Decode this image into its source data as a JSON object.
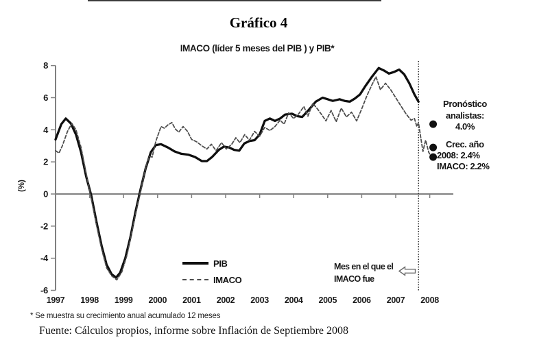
{
  "figure": {
    "title": "Gráfico 4",
    "subtitle": "IMACO (líder 5 meses del PIB ) y PIB*",
    "footnote": "* Se muestra su crecimiento anual acumulado 12 meses",
    "source": "Fuente: Cálculos propios, informe sobre Inflación de Septiembre 2008"
  },
  "legend": {
    "pib_label": "PIB",
    "imaco_label": "IMACO"
  },
  "annotations": {
    "forecast": {
      "line1": "Pronóstico",
      "line2": "analistas:",
      "line3": "4.0%"
    },
    "growth": {
      "line1": "Crec. año",
      "line2": "2008: 2.4%",
      "line3": "IMACO: 2.2%"
    },
    "divider_note": {
      "line1": "Mes en el que el",
      "line2": "IMACO fue",
      "arrow_icon": "left-hollow-arrow"
    }
  },
  "chart_data": {
    "type": "line",
    "title": "IMACO (líder 5 meses del PIB ) y PIB*",
    "xlabel": "",
    "ylabel": "(%)",
    "xlim": [
      1997,
      2008.7
    ],
    "ylim": [
      -6,
      8
    ],
    "x_ticks": [
      1997,
      1998,
      1999,
      2000,
      2001,
      2002,
      2003,
      2004,
      2005,
      2006,
      2007,
      2008
    ],
    "y_ticks": [
      8,
      6,
      4,
      2,
      0,
      -2,
      -4,
      -6
    ],
    "grid": "off",
    "legend_position": "inside-bottom-left",
    "divider_year": 2007.67,
    "colors": {
      "axis": "#808080",
      "pib": "#0f0f0f",
      "imaco": "#4d4d4d",
      "dots": "#111111",
      "divider": "#1a1a1a"
    },
    "series": [
      {
        "name": "PIB",
        "style": "solid",
        "points": [
          [
            1997.0,
            3.4
          ],
          [
            1997.17,
            4.35
          ],
          [
            1997.3,
            4.7
          ],
          [
            1997.45,
            4.4
          ],
          [
            1997.6,
            3.7
          ],
          [
            1997.75,
            2.6
          ],
          [
            1997.9,
            1.1
          ],
          [
            1998.05,
            -0.1
          ],
          [
            1998.2,
            -1.7
          ],
          [
            1998.35,
            -3.2
          ],
          [
            1998.5,
            -4.4
          ],
          [
            1998.65,
            -5.0
          ],
          [
            1998.78,
            -5.2
          ],
          [
            1998.9,
            -4.9
          ],
          [
            1999.05,
            -4.0
          ],
          [
            1999.2,
            -2.7
          ],
          [
            1999.35,
            -1.1
          ],
          [
            1999.5,
            0.3
          ],
          [
            1999.65,
            1.6
          ],
          [
            1999.8,
            2.6
          ],
          [
            1999.95,
            3.05
          ],
          [
            2000.1,
            3.1
          ],
          [
            2000.3,
            2.9
          ],
          [
            2000.5,
            2.65
          ],
          [
            2000.7,
            2.5
          ],
          [
            2000.9,
            2.45
          ],
          [
            2001.1,
            2.3
          ],
          [
            2001.3,
            2.05
          ],
          [
            2001.45,
            2.05
          ],
          [
            2001.6,
            2.3
          ],
          [
            2001.8,
            2.75
          ],
          [
            2001.95,
            2.95
          ],
          [
            2002.1,
            2.9
          ],
          [
            2002.25,
            2.75
          ],
          [
            2002.4,
            2.7
          ],
          [
            2002.55,
            3.15
          ],
          [
            2002.7,
            3.3
          ],
          [
            2002.85,
            3.35
          ],
          [
            2003.0,
            3.7
          ],
          [
            2003.15,
            4.55
          ],
          [
            2003.3,
            4.7
          ],
          [
            2003.45,
            4.55
          ],
          [
            2003.6,
            4.7
          ],
          [
            2003.75,
            4.95
          ],
          [
            2003.95,
            5.0
          ],
          [
            2004.1,
            4.85
          ],
          [
            2004.25,
            4.8
          ],
          [
            2004.45,
            5.25
          ],
          [
            2004.65,
            5.75
          ],
          [
            2004.85,
            6.0
          ],
          [
            2005.0,
            5.9
          ],
          [
            2005.15,
            5.8
          ],
          [
            2005.35,
            5.9
          ],
          [
            2005.5,
            5.8
          ],
          [
            2005.65,
            5.75
          ],
          [
            2005.8,
            5.95
          ],
          [
            2005.95,
            6.2
          ],
          [
            2006.1,
            6.7
          ],
          [
            2006.3,
            7.3
          ],
          [
            2006.5,
            7.85
          ],
          [
            2006.65,
            7.7
          ],
          [
            2006.8,
            7.5
          ],
          [
            2006.95,
            7.6
          ],
          [
            2007.1,
            7.75
          ],
          [
            2007.25,
            7.45
          ],
          [
            2007.4,
            6.9
          ],
          [
            2007.55,
            6.2
          ],
          [
            2007.67,
            5.75
          ]
        ]
      },
      {
        "name": "IMACO",
        "style": "dashed",
        "points": [
          [
            1997.0,
            2.7
          ],
          [
            1997.1,
            2.55
          ],
          [
            1997.2,
            3.0
          ],
          [
            1997.35,
            3.9
          ],
          [
            1997.48,
            4.4
          ],
          [
            1997.6,
            4.0
          ],
          [
            1997.75,
            2.9
          ],
          [
            1997.9,
            1.3
          ],
          [
            1998.05,
            -0.3
          ],
          [
            1998.2,
            -1.9
          ],
          [
            1998.35,
            -3.4
          ],
          [
            1998.5,
            -4.6
          ],
          [
            1998.65,
            -5.1
          ],
          [
            1998.8,
            -5.35
          ],
          [
            1998.95,
            -4.85
          ],
          [
            1999.1,
            -3.8
          ],
          [
            1999.25,
            -2.3
          ],
          [
            1999.4,
            -0.8
          ],
          [
            1999.55,
            0.7
          ],
          [
            1999.68,
            1.9
          ],
          [
            1999.76,
            2.35
          ],
          [
            1999.84,
            2.3
          ],
          [
            1999.95,
            3.3
          ],
          [
            2000.1,
            4.2
          ],
          [
            2000.2,
            4.1
          ],
          [
            2000.3,
            4.3
          ],
          [
            2000.42,
            4.45
          ],
          [
            2000.52,
            4.05
          ],
          [
            2000.62,
            3.85
          ],
          [
            2000.75,
            4.2
          ],
          [
            2000.88,
            3.9
          ],
          [
            2001.0,
            3.4
          ],
          [
            2001.15,
            3.25
          ],
          [
            2001.3,
            3.0
          ],
          [
            2001.45,
            2.8
          ],
          [
            2001.58,
            3.1
          ],
          [
            2001.72,
            2.7
          ],
          [
            2001.88,
            3.2
          ],
          [
            2002.02,
            2.8
          ],
          [
            2002.18,
            3.1
          ],
          [
            2002.3,
            3.5
          ],
          [
            2002.42,
            3.2
          ],
          [
            2002.56,
            3.7
          ],
          [
            2002.7,
            3.35
          ],
          [
            2002.85,
            3.9
          ],
          [
            2003.0,
            3.6
          ],
          [
            2003.15,
            4.15
          ],
          [
            2003.3,
            3.95
          ],
          [
            2003.45,
            4.2
          ],
          [
            2003.6,
            4.6
          ],
          [
            2003.72,
            4.35
          ],
          [
            2003.85,
            5.05
          ],
          [
            2004.0,
            4.7
          ],
          [
            2004.15,
            5.0
          ],
          [
            2004.3,
            5.45
          ],
          [
            2004.42,
            4.85
          ],
          [
            2004.56,
            5.65
          ],
          [
            2004.7,
            5.3
          ],
          [
            2004.82,
            4.95
          ],
          [
            2004.95,
            4.55
          ],
          [
            2005.1,
            5.2
          ],
          [
            2005.25,
            4.5
          ],
          [
            2005.4,
            5.35
          ],
          [
            2005.55,
            4.8
          ],
          [
            2005.7,
            5.1
          ],
          [
            2005.85,
            4.55
          ],
          [
            2006.0,
            5.3
          ],
          [
            2006.15,
            6.1
          ],
          [
            2006.3,
            6.8
          ],
          [
            2006.42,
            7.3
          ],
          [
            2006.55,
            6.5
          ],
          [
            2006.7,
            6.9
          ],
          [
            2006.85,
            6.5
          ],
          [
            2007.0,
            6.0
          ],
          [
            2007.15,
            5.5
          ],
          [
            2007.3,
            5.0
          ],
          [
            2007.45,
            4.6
          ],
          [
            2007.55,
            4.7
          ],
          [
            2007.62,
            4.2
          ],
          [
            2007.67,
            4.45
          ],
          [
            2007.73,
            3.6
          ],
          [
            2007.8,
            2.65
          ],
          [
            2007.88,
            3.35
          ],
          [
            2007.97,
            2.6
          ],
          [
            2008.05,
            2.3
          ]
        ]
      }
    ],
    "forecast_dots": [
      {
        "year": 2008.1,
        "value": 4.35,
        "label": "Pronóstico analistas: 4.0%"
      },
      {
        "year": 2008.1,
        "value": 2.9,
        "label": "Crec. año 2008: 2.4%"
      },
      {
        "year": 2008.1,
        "value": 2.3,
        "label": "IMACO: 2.2%"
      }
    ]
  }
}
